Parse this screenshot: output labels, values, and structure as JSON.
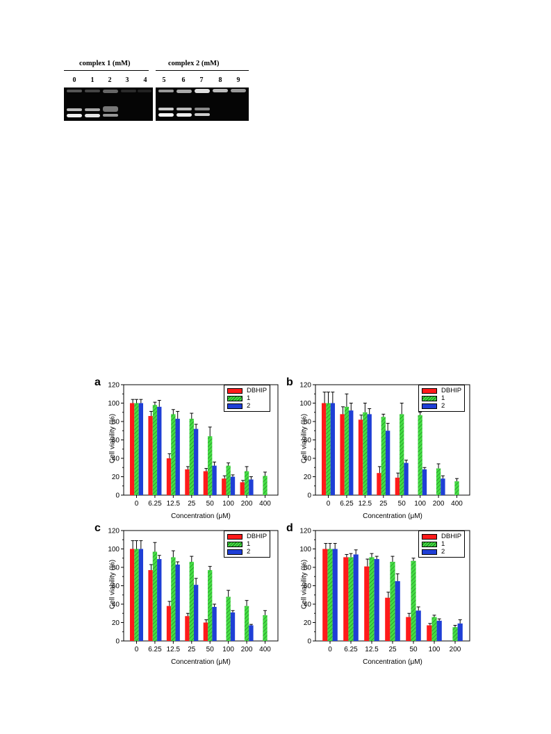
{
  "gel": {
    "group1_label": "complex 1 (mM)",
    "group2_label": "complex 2 (mM)",
    "lanes": [
      "0",
      "1",
      "2",
      "3",
      "4",
      "5",
      "6",
      "7",
      "8",
      "9"
    ]
  },
  "colors": {
    "DBHIP": "#ff1a1a",
    "1": "#44dd44",
    "2": "#1f3fd6"
  },
  "chart_data": [
    {
      "panel": "a",
      "type": "bar",
      "categories": [
        "0",
        "6.25",
        "12.5",
        "25",
        "50",
        "100",
        "200",
        "400"
      ],
      "series": [
        {
          "name": "DBHIP",
          "values": [
            100,
            86,
            40,
            28,
            26,
            18,
            14,
            null
          ],
          "errors": [
            4,
            5,
            5,
            3,
            3,
            3,
            2,
            null
          ]
        },
        {
          "name": "1",
          "values": [
            100,
            98,
            88,
            83,
            64,
            32,
            26,
            21
          ],
          "errors": [
            4,
            3,
            5,
            6,
            10,
            3,
            5,
            4
          ]
        },
        {
          "name": "2",
          "values": [
            100,
            96,
            83,
            72,
            32,
            20,
            17,
            null
          ],
          "errors": [
            4,
            7,
            8,
            5,
            4,
            2,
            3,
            null
          ]
        }
      ],
      "xlabel": "Concentration (μM)",
      "ylabel": "Cell viability (%)",
      "ylim": [
        0,
        120
      ],
      "yticks": [
        "0",
        "20",
        "40",
        "60",
        "80",
        "100",
        "120"
      ],
      "legend_position": "top-right"
    },
    {
      "panel": "b",
      "type": "bar",
      "categories": [
        "0",
        "6.25",
        "12.5",
        "25",
        "50",
        "100",
        "200",
        "400"
      ],
      "series": [
        {
          "name": "DBHIP",
          "values": [
            100,
            88,
            82,
            24,
            19,
            null,
            null,
            null
          ],
          "errors": [
            12,
            8,
            5,
            7,
            5,
            null,
            null,
            null
          ]
        },
        {
          "name": "1",
          "values": [
            100,
            96,
            90,
            85,
            88,
            87,
            29,
            15
          ],
          "errors": [
            12,
            14,
            10,
            3,
            12,
            3,
            5,
            3
          ]
        },
        {
          "name": "2",
          "values": [
            100,
            92,
            88,
            70,
            35,
            28,
            18,
            null
          ],
          "errors": [
            12,
            8,
            6,
            8,
            3,
            2,
            3,
            null
          ]
        }
      ],
      "xlabel": "Concentration (μM)",
      "ylabel": "Cell viability (%)",
      "ylim": [
        0,
        120
      ],
      "yticks": [
        "0",
        "20",
        "40",
        "60",
        "80",
        "100",
        "120"
      ],
      "legend_position": "top-right"
    },
    {
      "panel": "c",
      "type": "bar",
      "categories": [
        "0",
        "6.25",
        "12.5",
        "25",
        "50",
        "100",
        "200",
        "400"
      ],
      "series": [
        {
          "name": "DBHIP",
          "values": [
            100,
            77,
            38,
            27,
            20,
            null,
            null,
            null
          ],
          "errors": [
            9,
            6,
            5,
            3,
            3,
            null,
            null,
            null
          ]
        },
        {
          "name": "1",
          "values": [
            100,
            97,
            91,
            86,
            77,
            48,
            38,
            28
          ],
          "errors": [
            9,
            10,
            7,
            6,
            4,
            7,
            6,
            5
          ]
        },
        {
          "name": "2",
          "values": [
            100,
            89,
            83,
            61,
            37,
            31,
            17,
            null
          ],
          "errors": [
            9,
            4,
            3,
            7,
            3,
            2,
            1,
            null
          ]
        }
      ],
      "xlabel": "Concentration (μM)",
      "ylabel": "Cell viability (%)",
      "ylim": [
        0,
        120
      ],
      "yticks": [
        "0",
        "20",
        "40",
        "60",
        "80",
        "100",
        "120"
      ],
      "legend_position": "top-right"
    },
    {
      "panel": "d",
      "type": "bar",
      "categories": [
        "0",
        "6.25",
        "12.5",
        "25",
        "50",
        "100",
        "200"
      ],
      "series": [
        {
          "name": "DBHIP",
          "values": [
            100,
            91,
            81,
            47,
            26,
            17,
            null
          ],
          "errors": [
            6,
            3,
            8,
            6,
            4,
            2,
            null
          ]
        },
        {
          "name": "1",
          "values": [
            100,
            91,
            91,
            86,
            87,
            26,
            15
          ],
          "errors": [
            6,
            4,
            4,
            6,
            3,
            2,
            2
          ]
        },
        {
          "name": "2",
          "values": [
            100,
            94,
            89,
            65,
            33,
            22,
            19
          ],
          "errors": [
            6,
            5,
            3,
            8,
            4,
            2,
            4
          ]
        }
      ],
      "xlabel": "Concentration (μM)",
      "ylabel": "Cell viability (%)",
      "ylim": [
        0,
        120
      ],
      "yticks": [
        "0",
        "20",
        "40",
        "60",
        "80",
        "100",
        "120"
      ],
      "legend_position": "top-right"
    }
  ]
}
